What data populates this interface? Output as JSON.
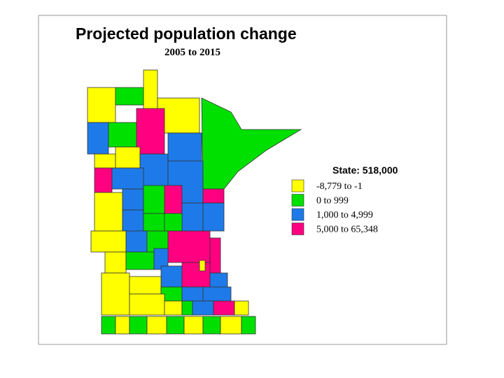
{
  "title": "Projected population change",
  "subtitle": "2005 to 2015",
  "legend": {
    "title": "State: 518,000",
    "items": [
      {
        "color": "#ffff00",
        "label": "-8,779 to -1"
      },
      {
        "color": "#00e000",
        "label": "0 to 999"
      },
      {
        "color": "#1e7ae8",
        "label": "1,000 to 4,999"
      },
      {
        "color": "#ff0080",
        "label": "5,000 to 65,348"
      }
    ]
  }
}
